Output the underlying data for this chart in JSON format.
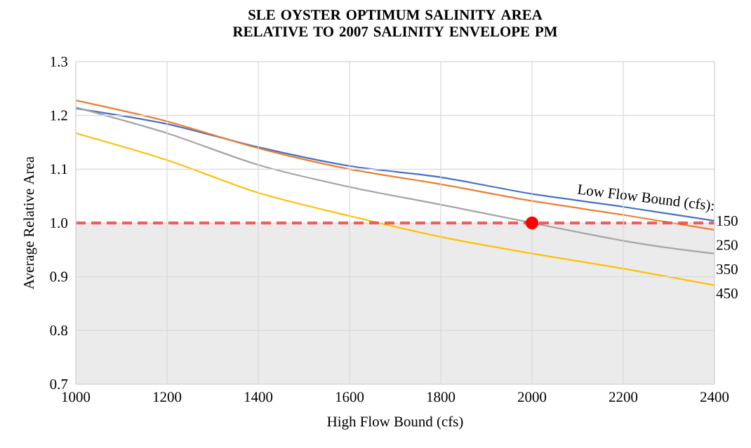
{
  "chart_data": {
    "type": "line",
    "title": "SLE OYSTER OPTIMUM SALINITY AREA RELATIVE TO 2007 SALINITY ENVELOPE PM",
    "xlabel": "High Flow Bound (cfs)",
    "ylabel": "Average Relative Area",
    "legend_title": "Low Flow Bound (cfs):",
    "x": [
      1000,
      1200,
      1400,
      1600,
      1800,
      2000,
      2200,
      2400
    ],
    "series": [
      {
        "name": "150",
        "color": "#4472c4",
        "values": [
          1.213,
          1.184,
          1.141,
          1.106,
          1.085,
          1.054,
          1.03,
          1.004
        ]
      },
      {
        "name": "250",
        "color": "#ed7d31",
        "values": [
          1.228,
          1.189,
          1.139,
          1.1,
          1.072,
          1.041,
          1.015,
          0.987
        ]
      },
      {
        "name": "350",
        "color": "#a5a5a5",
        "values": [
          1.215,
          1.167,
          1.108,
          1.067,
          1.034,
          null,
          0.967,
          0.943
        ]
      },
      {
        "name": "450",
        "color": "#ffc000",
        "values": [
          1.167,
          1.117,
          1.056,
          1.013,
          0.974,
          0.943,
          0.915,
          0.884
        ]
      },
      {
        "type": "scatter",
        "color": "#ff0000",
        "marker": "circle",
        "x": [
          2000
        ],
        "values": [
          1.0
        ]
      }
    ],
    "ref_lines": [
      {
        "axis": "y",
        "value": 1.0,
        "color": "#ff0000",
        "line_style": "dashed"
      }
    ],
    "bands": [
      {
        "axis": "y",
        "from": 0.7,
        "to": 1.0,
        "color": "#ebebeb"
      }
    ],
    "xlim": [
      1000,
      2400
    ],
    "xticks": [
      1000,
      1200,
      1400,
      1600,
      1800,
      2000,
      2200,
      2400
    ],
    "ylim": [
      0.7,
      1.3
    ],
    "yticks": [
      0.7,
      0.8,
      0.9,
      {
        "value": 1.0,
        "label": "1.0"
      },
      1.1,
      1.2,
      1.3
    ],
    "grid": true,
    "marker": "none",
    "line_style": "solid"
  }
}
